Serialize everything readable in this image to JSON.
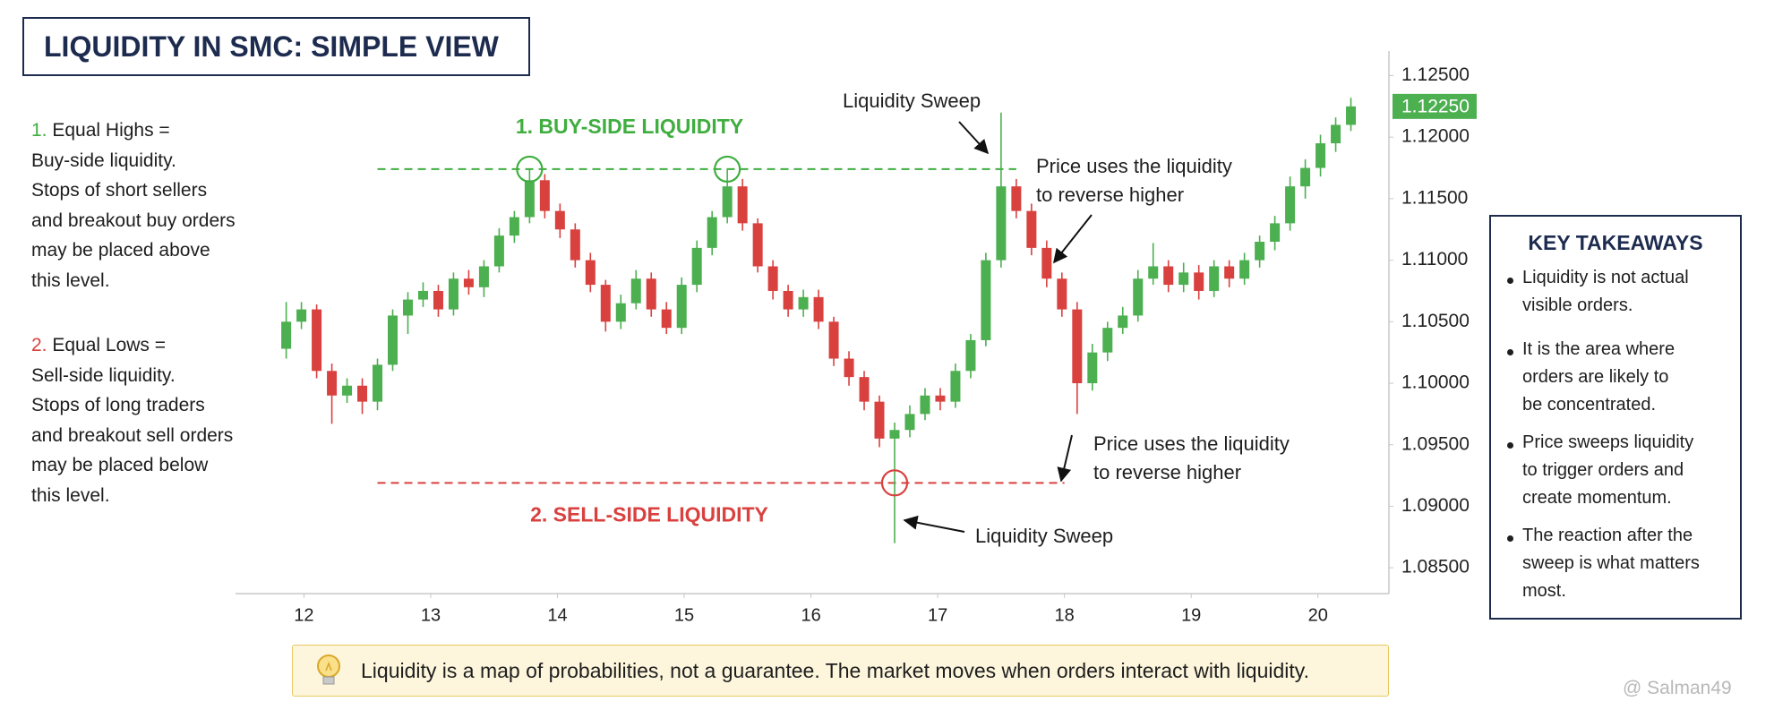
{
  "chart_data": {
    "type": "candlestick",
    "title": "LIQUIDITY IN SMC: SIMPLE VIEW",
    "x": [
      11.86,
      11.98,
      12.1,
      12.22,
      12.34,
      12.46,
      12.58,
      12.7,
      12.82,
      12.94,
      13.06,
      13.18,
      13.3,
      13.42,
      13.54,
      13.66,
      13.78,
      13.9,
      14.02,
      14.14,
      14.26,
      14.38,
      14.5,
      14.62,
      14.74,
      14.86,
      14.98,
      15.1,
      15.22,
      15.34,
      15.46,
      15.58,
      15.7,
      15.82,
      15.94,
      16.06,
      16.18,
      16.3,
      16.42,
      16.54,
      16.66,
      16.78,
      16.9,
      17.02,
      17.14,
      17.26,
      17.38,
      17.5,
      17.62,
      17.74,
      17.86,
      17.98,
      18.1,
      18.22,
      18.34,
      18.46,
      18.58,
      18.7,
      18.82,
      18.94,
      19.06,
      19.18,
      19.3,
      19.42,
      19.54,
      19.66,
      19.78,
      19.9,
      20.02,
      20.14,
      20.26
    ],
    "open": [
      1.1028,
      1.105,
      1.106,
      1.101,
      1.099,
      1.0998,
      1.0985,
      1.1015,
      1.1055,
      1.1068,
      1.1075,
      1.106,
      1.1085,
      1.1078,
      1.1095,
      1.112,
      1.1135,
      1.1165,
      1.114,
      1.1125,
      1.11,
      1.108,
      1.105,
      1.1065,
      1.1085,
      1.106,
      1.1045,
      1.108,
      1.111,
      1.1135,
      1.116,
      1.113,
      1.1095,
      1.1075,
      1.106,
      1.107,
      1.105,
      1.102,
      1.1005,
      1.0985,
      1.0955,
      1.0962,
      1.0975,
      1.099,
      1.0985,
      1.101,
      1.1035,
      1.11,
      1.116,
      1.114,
      1.111,
      1.1085,
      1.106,
      1.1,
      1.1025,
      1.1045,
      1.1055,
      1.1085,
      1.1095,
      1.108,
      1.109,
      1.1075,
      1.1095,
      1.1085,
      1.11,
      1.1115,
      1.113,
      1.116,
      1.1175,
      1.1195,
      1.121
    ],
    "high": [
      1.1066,
      1.1066,
      1.1064,
      1.1016,
      1.1004,
      1.1004,
      1.102,
      1.106,
      1.1074,
      1.1082,
      1.108,
      1.109,
      1.1092,
      1.11,
      1.1126,
      1.114,
      1.1174,
      1.117,
      1.1146,
      1.113,
      1.1106,
      1.1084,
      1.1072,
      1.1092,
      1.109,
      1.1066,
      1.1086,
      1.1116,
      1.114,
      1.1174,
      1.1166,
      1.1134,
      1.11,
      1.108,
      1.1076,
      1.1076,
      1.1054,
      1.1026,
      1.101,
      1.099,
      1.0968,
      1.0982,
      1.0996,
      1.0996,
      1.1016,
      1.104,
      1.1106,
      1.122,
      1.1166,
      1.1146,
      1.1116,
      1.109,
      1.1066,
      1.1032,
      1.105,
      1.1062,
      1.1092,
      1.1114,
      1.11,
      1.1098,
      1.1096,
      1.11,
      1.11,
      1.1106,
      1.112,
      1.1136,
      1.1168,
      1.1182,
      1.1202,
      1.1216,
      1.1232
    ],
    "low": [
      1.102,
      1.1044,
      1.1004,
      1.0967,
      1.0984,
      1.0975,
      1.0978,
      1.101,
      1.104,
      1.1062,
      1.1054,
      1.1055,
      1.1072,
      1.107,
      1.109,
      1.1114,
      1.113,
      1.1134,
      1.1118,
      1.1094,
      1.1074,
      1.1042,
      1.1044,
      1.106,
      1.1054,
      1.104,
      1.104,
      1.1074,
      1.1104,
      1.113,
      1.1124,
      1.109,
      1.1068,
      1.1054,
      1.1054,
      1.1044,
      1.1014,
      1.0998,
      1.0978,
      1.0948,
      1.087,
      1.0956,
      1.097,
      1.0978,
      1.098,
      1.1004,
      1.103,
      1.1094,
      1.1134,
      1.1104,
      1.1078,
      1.1054,
      1.0975,
      1.0994,
      1.1018,
      1.104,
      1.105,
      1.108,
      1.1074,
      1.1074,
      1.1068,
      1.107,
      1.1078,
      1.108,
      1.1094,
      1.1108,
      1.1124,
      1.115,
      1.1168,
      1.1188,
      1.1205
    ],
    "close": [
      1.105,
      1.106,
      1.101,
      1.099,
      1.0998,
      1.0985,
      1.1015,
      1.1055,
      1.1068,
      1.1075,
      1.106,
      1.1085,
      1.1078,
      1.1095,
      1.112,
      1.1135,
      1.1165,
      1.114,
      1.1125,
      1.11,
      1.108,
      1.105,
      1.1065,
      1.1085,
      1.106,
      1.1045,
      1.108,
      1.111,
      1.1135,
      1.116,
      1.113,
      1.1095,
      1.1075,
      1.106,
      1.107,
      1.105,
      1.102,
      1.1005,
      1.0985,
      1.0955,
      1.0962,
      1.0975,
      1.099,
      1.0985,
      1.101,
      1.1035,
      1.11,
      1.116,
      1.114,
      1.111,
      1.1085,
      1.106,
      1.1,
      1.1025,
      1.1045,
      1.1055,
      1.1085,
      1.1095,
      1.108,
      1.109,
      1.1075,
      1.1095,
      1.1085,
      1.11,
      1.1115,
      1.113,
      1.116,
      1.1175,
      1.1195,
      1.121,
      1.1225
    ],
    "up_color": "#4caf50",
    "down_color": "#d9413f",
    "xlim": [
      11.46,
      20.56
    ],
    "xticks": [
      12,
      13,
      14,
      15,
      16,
      17,
      18,
      19,
      20
    ],
    "ylim": [
      1.0829,
      1.127
    ],
    "yticks": [
      {
        "value": 1.085,
        "label": "1.08500"
      },
      {
        "value": 1.09,
        "label": "1.09000"
      },
      {
        "value": 1.095,
        "label": "1.09500"
      },
      {
        "value": 1.1,
        "label": "1.10000"
      },
      {
        "value": 1.105,
        "label": "1.10500"
      },
      {
        "value": 1.11,
        "label": "1.11000"
      },
      {
        "value": 1.115,
        "label": "1.11500"
      },
      {
        "value": 1.12,
        "label": "1.12000"
      },
      {
        "value": 1.125,
        "label": "1.12500"
      }
    ],
    "price_tag": {
      "value": 1.1225,
      "label": "1.12250",
      "color": "#4caf50"
    },
    "levels": [
      {
        "label": "1. BUY-SIDE LIQUIDITY",
        "value": 1.1174,
        "from": 12.58,
        "to": 17.62,
        "color": "#3fae3f"
      },
      {
        "label": "2. SELL-SIDE LIQUIDITY",
        "value": 1.0919,
        "from": 12.58,
        "to": 18.0,
        "color": "#d9413f"
      }
    ],
    "markers": [
      {
        "x": 13.78,
        "y": 1.1174,
        "color": "#3fae3f"
      },
      {
        "x": 15.34,
        "y": 1.1174,
        "color": "#3fae3f"
      },
      {
        "x": 16.66,
        "y": 1.0919,
        "color": "#d9413f"
      }
    ],
    "annotations": [
      [
        "Liquidity Sweep"
      ],
      [
        "Price uses the liquidity",
        "to reverse higher"
      ],
      [
        "Price uses the liquidity",
        "to reverse higher"
      ],
      [
        "Liquidity Sweep"
      ]
    ]
  },
  "left_notes": [
    {
      "number": "1.",
      "lines": [
        "Equal Highs =",
        "Buy-side liquidity.",
        "Stops of short sellers",
        "and breakout buy orders",
        "may be placed above",
        "this level."
      ]
    },
    {
      "number": "2.",
      "lines": [
        "Equal Lows =",
        "Sell-side liquidity.",
        "Stops of long traders",
        "and breakout sell orders",
        "may be placed below",
        "this level."
      ]
    }
  ],
  "takeaways": {
    "title": "KEY TAKEAWAYS",
    "items": [
      [
        "Liquidity is not actual",
        "visible orders."
      ],
      [
        "It is the area where",
        "orders are likely to",
        "be concentrated."
      ],
      [
        "Price sweeps liquidity",
        "to trigger orders and",
        "create momentum."
      ],
      [
        "The reaction after the",
        "sweep is what matters",
        "most."
      ]
    ]
  },
  "footer_note": "Liquidity is a map of probabilities, not a guarantee. The market moves when orders interact with liquidity.",
  "watermark": "@ Salman49"
}
